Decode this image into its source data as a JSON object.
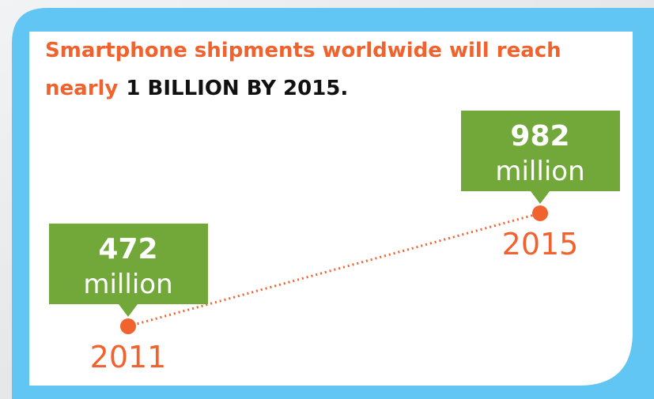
{
  "chart_data": {
    "type": "line",
    "title": {
      "line1": "Smartphone shipments worldwide will reach",
      "lead": "nearly",
      "highlight": "1 BILLION BY 2015."
    },
    "categories": [
      "2011",
      "2015"
    ],
    "values": [
      472,
      982
    ],
    "value_unit": "million",
    "color": "#f0622e",
    "label_color": "#72a83a"
  }
}
